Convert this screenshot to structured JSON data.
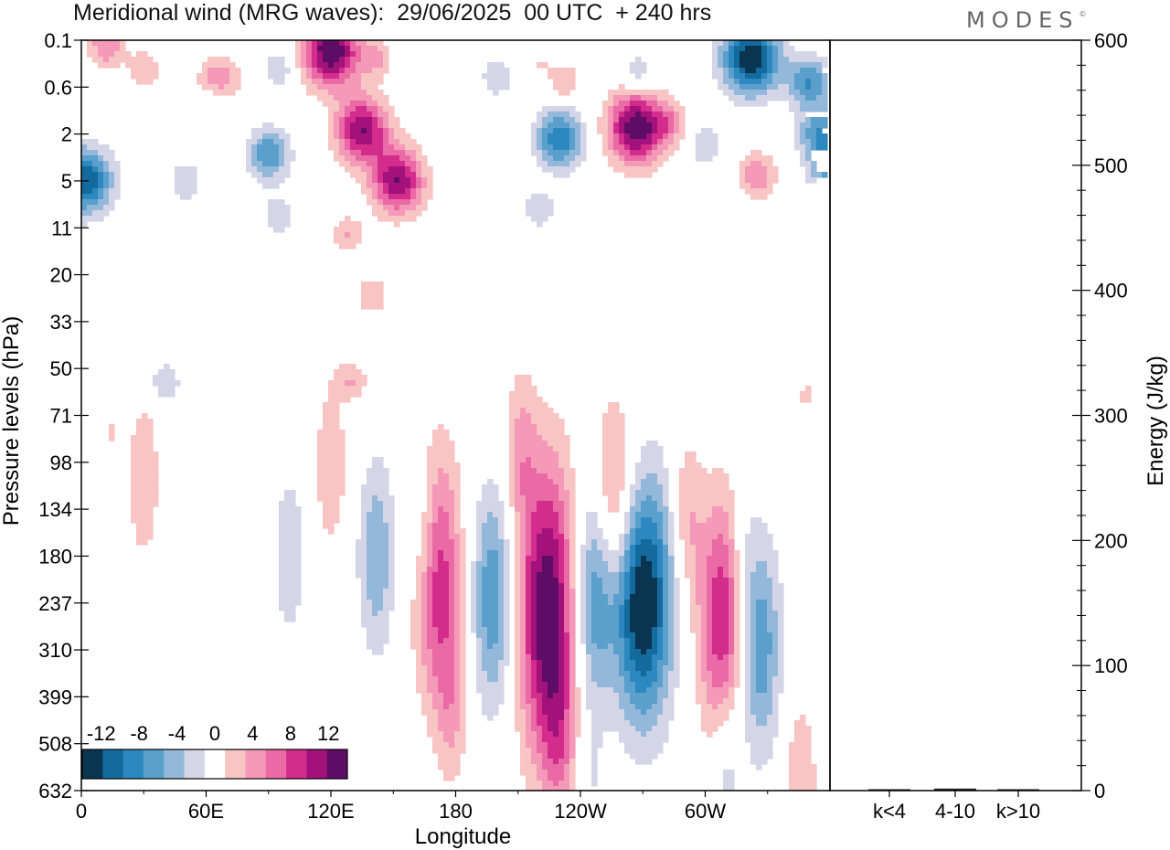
{
  "header": {
    "title": "Meridional wind (MRG waves):  29/06/2025  00 UTC  + 240 hrs",
    "brand": "MODES",
    "brand_mark": "©"
  },
  "chart_data": [
    {
      "type": "heatmap",
      "title": "Meridional wind (MRG waves):  29/06/2025  00 UTC  + 240 hrs",
      "xlabel": "Longitude",
      "ylabel": "Pressure levels (hPa)",
      "x_ticks": [
        "0",
        "60E",
        "120E",
        "180",
        "120W",
        "60W"
      ],
      "x_tick_values": [
        0,
        60,
        120,
        180,
        240,
        300
      ],
      "xlim": [
        0,
        360
      ],
      "y_ticks": [
        "0.1",
        "0.6",
        "2",
        "5",
        "11",
        "20",
        "33",
        "50",
        "71",
        "98",
        "134",
        "180",
        "237",
        "310",
        "399",
        "508",
        "632"
      ],
      "legend_position": "bottom-left",
      "colorbar": {
        "labels": [
          "-12",
          "-8",
          "-4",
          "0",
          "4",
          "8",
          "12"
        ],
        "label_values": [
          -12,
          -8,
          -4,
          0,
          4,
          8,
          12
        ],
        "levels": [
          -14,
          -12,
          -10,
          -8,
          -6,
          -4,
          -2,
          2,
          4,
          6,
          8,
          10,
          12,
          14
        ],
        "colors": [
          "#0a3550",
          "#136a9c",
          "#2d88bf",
          "#5b9fcc",
          "#93b8da",
          "#d4d6e8",
          "#ffffff",
          "#f8c4c4",
          "#f49ab8",
          "#ea6aa5",
          "#d42c8c",
          "#a2127a",
          "#5f0c66"
        ]
      },
      "features": [
        {
          "lon": 12,
          "p": 0.12,
          "value": 6
        },
        {
          "lon": 30,
          "p": 0.3,
          "value": 4
        },
        {
          "lon": 66,
          "p": 0.5,
          "value": 7
        },
        {
          "lon": 65,
          "p": 0.8,
          "value": -4
        },
        {
          "lon": 95,
          "p": 0.3,
          "value": -4
        },
        {
          "lon": 120,
          "p": 0.15,
          "value": 14
        },
        {
          "lon": 142,
          "p": 0.2,
          "value": 4
        },
        {
          "lon": 2,
          "p": 5,
          "value": -12
        },
        {
          "lon": 50,
          "p": 5,
          "value": -4
        },
        {
          "lon": 90,
          "p": 3,
          "value": -8
        },
        {
          "lon": 95,
          "p": 9,
          "value": -4
        },
        {
          "lon": 135,
          "p": 1.8,
          "value": 12
        },
        {
          "lon": 152,
          "p": 5,
          "value": 12
        },
        {
          "lon": 128,
          "p": 12,
          "value": 4
        },
        {
          "lon": 140,
          "p": 25,
          "value": 4
        },
        {
          "lon": 220,
          "p": 0.25,
          "value": 2
        },
        {
          "lon": 200,
          "p": 0.4,
          "value": -4
        },
        {
          "lon": 230,
          "p": 2.2,
          "value": -10
        },
        {
          "lon": 220,
          "p": 8,
          "value": -4
        },
        {
          "lon": 232,
          "p": 0.5,
          "value": 4
        },
        {
          "lon": 267,
          "p": 1.7,
          "value": 14
        },
        {
          "lon": 268,
          "p": 0.35,
          "value": -4
        },
        {
          "lon": 283,
          "p": 1.5,
          "value": 4
        },
        {
          "lon": 300,
          "p": 2.5,
          "value": -4
        },
        {
          "lon": 322,
          "p": 0.2,
          "value": -14
        },
        {
          "lon": 350,
          "p": 0.5,
          "value": -8
        },
        {
          "lon": 355,
          "p": 2,
          "value": -8
        },
        {
          "lon": 358,
          "p": 4,
          "value": -6
        },
        {
          "lon": 325,
          "p": 4.5,
          "value": 6
        },
        {
          "lon": 265,
          "p": 11,
          "value": 2
        },
        {
          "lon": 335,
          "p": 12,
          "value": -2
        },
        {
          "lon": 10,
          "p": 22,
          "value": -2
        },
        {
          "lon": 130,
          "p": 55,
          "value": 4
        },
        {
          "lon": 40,
          "p": 55,
          "value": -4
        },
        {
          "lon": 30,
          "p": 110,
          "value": 4
        },
        {
          "lon": 15,
          "p": 80,
          "value": 2
        },
        {
          "lon": 60,
          "p": 150,
          "value": -2
        },
        {
          "lon": 55,
          "p": 350,
          "value": -2
        },
        {
          "lon": 100,
          "p": 180,
          "value": -4
        },
        {
          "lon": 142,
          "p": 180,
          "value": -6
        },
        {
          "lon": 120,
          "p": 100,
          "value": 4
        },
        {
          "lon": 165,
          "p": 160,
          "value": -4
        },
        {
          "lon": 171,
          "p": 200,
          "value": 10
        },
        {
          "lon": 178,
          "p": 420,
          "value": 4
        },
        {
          "lon": 198,
          "p": 230,
          "value": -8
        },
        {
          "lon": 211,
          "p": 90,
          "value": 4
        },
        {
          "lon": 224,
          "p": 250,
          "value": 14
        },
        {
          "lon": 230,
          "p": 500,
          "value": 4
        },
        {
          "lon": 247,
          "p": 230,
          "value": -8
        },
        {
          "lon": 256,
          "p": 120,
          "value": 6
        },
        {
          "lon": 265,
          "p": 250,
          "value": -8
        },
        {
          "lon": 275,
          "p": 230,
          "value": -10
        },
        {
          "lon": 291,
          "p": 140,
          "value": 4
        },
        {
          "lon": 308,
          "p": 260,
          "value": 10
        },
        {
          "lon": 318,
          "p": 160,
          "value": -2
        },
        {
          "lon": 326,
          "p": 300,
          "value": -8
        },
        {
          "lon": 343,
          "p": 90,
          "value": 2
        },
        {
          "lon": 350,
          "p": 150,
          "value": -2
        },
        {
          "lon": 350,
          "p": 60,
          "value": 2
        },
        {
          "lon": 346,
          "p": 600,
          "value": 4
        },
        {
          "lon": 310,
          "p": 580,
          "value": -4
        },
        {
          "lon": 245,
          "p": 600,
          "value": -2
        },
        {
          "lon": 95,
          "p": 480,
          "value": 2
        }
      ]
    },
    {
      "type": "bar",
      "ylabel": "Energy (J/kg)",
      "categories": [
        "k<4",
        "4-10",
        "k>10"
      ],
      "values": [
        0.4,
        1.6,
        0.4
      ],
      "ylim": [
        0,
        600
      ],
      "y_ticks": [
        "0",
        "100",
        "200",
        "300",
        "400",
        "500",
        "600"
      ],
      "y_tick_values": [
        0,
        100,
        200,
        300,
        400,
        500,
        600
      ]
    }
  ]
}
